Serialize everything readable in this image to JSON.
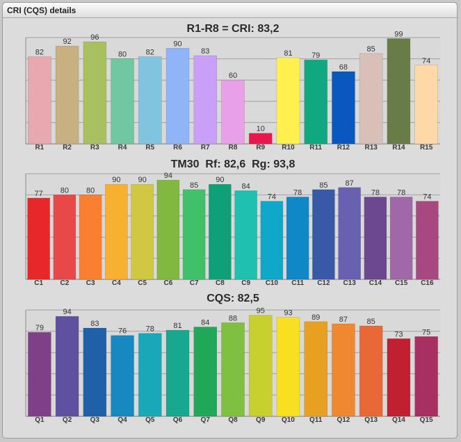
{
  "window": {
    "title": "CRI (CQS) details"
  },
  "chart_data": [
    {
      "type": "bar",
      "title": "R1-R8 = CRI: 83,2",
      "categories": [
        "R1",
        "R2",
        "R3",
        "R4",
        "R5",
        "R6",
        "R7",
        "R8",
        "R9",
        "R10",
        "R11",
        "R12",
        "R13",
        "R14",
        "R15"
      ],
      "values": [
        82,
        92,
        96,
        80,
        82,
        90,
        83,
        60,
        10,
        81,
        79,
        68,
        85,
        99,
        74
      ],
      "colors": [
        "#e8a8b0",
        "#c8b080",
        "#a8c060",
        "#70c8a0",
        "#80c4e0",
        "#90b4f8",
        "#c8a0f8",
        "#e8a0e8",
        "#e8184c",
        "#fff050",
        "#10a880",
        "#0858c0",
        "#d8c0b8",
        "#687c48",
        "#ffd8a8"
      ],
      "ylim": [
        0,
        100
      ],
      "grid": true
    },
    {
      "type": "bar",
      "title": "TM30  Rf: 82,6  Rg: 93,8",
      "categories": [
        "C1",
        "C2",
        "C3",
        "C4",
        "C5",
        "C6",
        "C7",
        "C8",
        "C9",
        "C10",
        "C11",
        "C12",
        "C13",
        "C14",
        "C15",
        "C16"
      ],
      "values": [
        77,
        80,
        80,
        90,
        90,
        94,
        85,
        90,
        84,
        74,
        78,
        85,
        87,
        78,
        78,
        74
      ],
      "colors": [
        "#e82828",
        "#e84848",
        "#f88030",
        "#f8b030",
        "#d0c840",
        "#80b840",
        "#40c068",
        "#10a078",
        "#20c0b0",
        "#10a8c8",
        "#1088c8",
        "#3858a8",
        "#6860b0",
        "#6c4890",
        "#a068a8",
        "#a84880"
      ],
      "ylim": [
        0,
        100
      ],
      "grid": true
    },
    {
      "type": "bar",
      "title": "CQS: 82,5",
      "categories": [
        "Q1",
        "Q2",
        "Q3",
        "Q4",
        "Q5",
        "Q6",
        "Q7",
        "Q8",
        "Q9",
        "Q10",
        "Q11",
        "Q12",
        "Q13",
        "Q14",
        "Q15"
      ],
      "values": [
        79,
        94,
        83,
        76,
        78,
        81,
        84,
        88,
        95,
        93,
        89,
        87,
        85,
        73,
        75
      ],
      "colors": [
        "#804088",
        "#6050a0",
        "#2060a8",
        "#1888c0",
        "#18a8b8",
        "#18a890",
        "#20a858",
        "#80c040",
        "#c8d030",
        "#f8e020",
        "#e8a020",
        "#f08830",
        "#e86838",
        "#c02030",
        "#a83060"
      ],
      "ylim": [
        0,
        100
      ],
      "grid": true
    }
  ]
}
